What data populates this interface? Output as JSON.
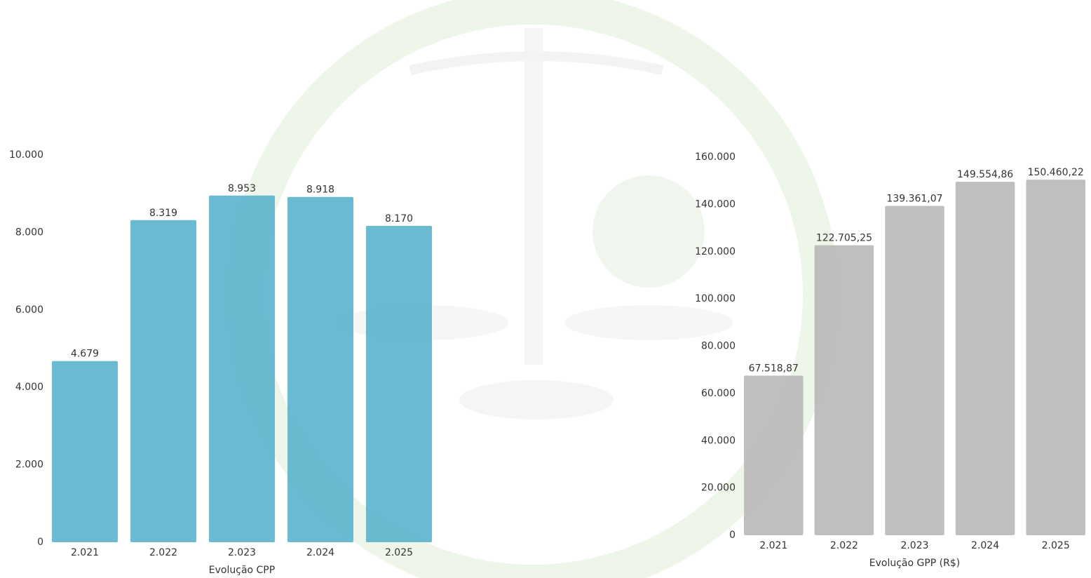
{
  "chart_data": [
    {
      "type": "bar",
      "x_label": "Evolução CPP",
      "categories": [
        "2.021",
        "2.022",
        "2.023",
        "2.024",
        "2.025"
      ],
      "values": [
        4679,
        8319,
        8953,
        8918,
        8170
      ],
      "value_labels": [
        "4.679",
        "8.319",
        "8.953",
        "8.918",
        "8.170"
      ],
      "color": "#5ab4cc",
      "ylim": [
        0,
        10000
      ],
      "yticks": [
        0,
        {
          "value": 2000,
          "label": "2.000"
        },
        {
          "value": 4000,
          "label": "4.000"
        },
        {
          "value": 6000,
          "label": "6.000"
        },
        {
          "value": 8000,
          "label": "8.000"
        },
        {
          "value": 10000,
          "label": "10.000"
        }
      ],
      "grid": false
    },
    {
      "type": "bar",
      "x_label": "Evolução GPP (R$)",
      "categories": [
        "2.021",
        "2.022",
        "2.023",
        "2.024",
        "2.025"
      ],
      "values": [
        67518.87,
        122705.25,
        139361.07,
        149554.86,
        150460.22
      ],
      "value_labels": [
        "67.518,87",
        "122.705,25",
        "139.361,07",
        "149.554,86",
        "150.460,22"
      ],
      "color": "#b8b8b8",
      "ylim": [
        0,
        160000
      ],
      "yticks": [
        0,
        {
          "value": 20000,
          "label": "20.000"
        },
        {
          "value": 40000,
          "label": "40.000"
        },
        {
          "value": 60000,
          "label": "60.000"
        },
        {
          "value": 80000,
          "label": "80.000"
        },
        {
          "value": 100000,
          "label": "100.000"
        },
        {
          "value": 120000,
          "label": "120.000"
        },
        {
          "value": 140000,
          "label": "140.000"
        },
        {
          "value": 160000,
          "label": "160.000"
        }
      ],
      "grid": false
    }
  ]
}
